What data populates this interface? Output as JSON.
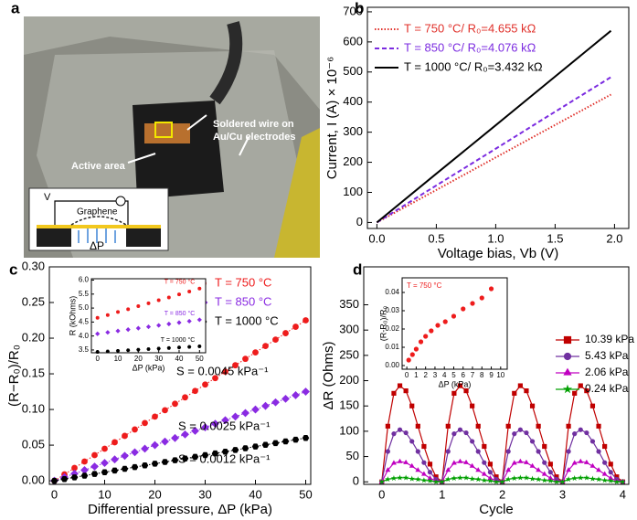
{
  "photo": {
    "panel_label": "a",
    "annotations": [
      "Soldered wire on",
      "Au/Cu electrodes",
      "Active area"
    ],
    "schematic": {
      "voltage": "V",
      "material": "Graphene",
      "pressure": "ΔP"
    }
  },
  "chart_data": [
    {
      "type": "line",
      "panel_label": "b",
      "xlabel": "Voltage bias, Vb (V)",
      "ylabel": "Current, I (A) × 10⁻⁶",
      "x": [
        0,
        0.5,
        1.0,
        1.5,
        1.97
      ],
      "series": [
        {
          "name": "T = 750 °C/ R₀=4.655 kΩ",
          "color": "#e0302a",
          "dash": "dotted",
          "values": [
            0,
            108,
            216,
            324,
            425
          ]
        },
        {
          "name": "T = 850 °C/ R₀=4.076 kΩ",
          "color": "#7b2be0",
          "dash": "dashed",
          "values": [
            0,
            123,
            245,
            368,
            483
          ]
        },
        {
          "name": "T = 1000 °C/ R₀=3.432 kΩ",
          "color": "#000000",
          "dash": "solid",
          "values": [
            0,
            162,
            323,
            485,
            637
          ]
        }
      ],
      "xlim": [
        -0.08,
        2.12
      ],
      "ylim": [
        -20,
        715
      ],
      "xticks": [
        {
          "value": 0,
          "label": "0.0"
        },
        {
          "value": 0.5,
          "label": "0.5"
        },
        {
          "value": 1,
          "label": "1.0"
        },
        {
          "value": 1.5,
          "label": "1.5"
        },
        {
          "value": 2,
          "label": "2.0"
        }
      ],
      "yticks": [
        0,
        100,
        200,
        300,
        400,
        500,
        600,
        700
      ],
      "legend": "top-left",
      "legend_text_colored": true
    },
    {
      "type": "scatter",
      "panel_label": "c",
      "xlabel": "Differential pressure, ΔP (kPa)",
      "ylabel": "(R−R₀)/R₀",
      "x": [
        0,
        2,
        4,
        6,
        8,
        10,
        12,
        14,
        16,
        18,
        20,
        22,
        24,
        26,
        28,
        30,
        32,
        34,
        36,
        38,
        40,
        42,
        44,
        46,
        48,
        50
      ],
      "series": [
        {
          "name": "T = 750 °C",
          "color": "#ee1c1c",
          "marker": "circle",
          "values": [
            0,
            0.009,
            0.018,
            0.027,
            0.036,
            0.045,
            0.054,
            0.063,
            0.072,
            0.081,
            0.09,
            0.099,
            0.108,
            0.117,
            0.126,
            0.135,
            0.144,
            0.153,
            0.162,
            0.171,
            0.18,
            0.189,
            0.198,
            0.207,
            0.216,
            0.225
          ]
        },
        {
          "name": "T = 850 °C",
          "color": "#8a2be2",
          "marker": "diamond",
          "values": [
            0,
            0.005,
            0.01,
            0.015,
            0.02,
            0.025,
            0.03,
            0.035,
            0.04,
            0.045,
            0.05,
            0.055,
            0.06,
            0.065,
            0.07,
            0.075,
            0.08,
            0.085,
            0.09,
            0.095,
            0.1,
            0.105,
            0.11,
            0.115,
            0.12,
            0.125
          ]
        },
        {
          "name": "T = 1000 °C",
          "color": "#000000",
          "marker": "hexagon",
          "values": [
            0,
            0.0024,
            0.0048,
            0.0072,
            0.0096,
            0.012,
            0.0144,
            0.0168,
            0.0192,
            0.0216,
            0.024,
            0.0264,
            0.0288,
            0.0312,
            0.0336,
            0.036,
            0.0384,
            0.0408,
            0.0432,
            0.0456,
            0.048,
            0.0504,
            0.0528,
            0.0552,
            0.0576,
            0.06
          ]
        }
      ],
      "annotations": [
        "S = 0.0045 kPa⁻¹",
        "S = 0.0025 kPa⁻¹",
        "S = 0.0012 kPa⁻¹"
      ],
      "fit_lines": true,
      "xlim": [
        -1,
        51
      ],
      "ylim": [
        -0.005,
        0.3
      ],
      "xticks": [
        0,
        10,
        20,
        30,
        40,
        50
      ],
      "yticks": [
        {
          "value": 0,
          "label": "0.00"
        },
        {
          "value": 0.05,
          "label": "0.05"
        },
        {
          "value": 0.1,
          "label": "0.10"
        },
        {
          "value": 0.15,
          "label": "0.15"
        },
        {
          "value": 0.2,
          "label": "0.20"
        },
        {
          "value": 0.25,
          "label": "0.25"
        },
        {
          "value": 0.3,
          "label": "0.30"
        }
      ],
      "legend": "top-right",
      "legend_text_colored": true
    },
    {
      "type": "scatter",
      "xlabel": "ΔP (kPa)",
      "ylabel": "R (kOhms)",
      "x": [
        0,
        5,
        10,
        15,
        20,
        25,
        30,
        35,
        40,
        45,
        50
      ],
      "series": [
        {
          "name": "T = 750 °C",
          "color": "#ee1c1c",
          "marker": "circle",
          "values": [
            4.65,
            4.75,
            4.86,
            4.96,
            5.07,
            5.17,
            5.28,
            5.38,
            5.49,
            5.59,
            5.7
          ]
        },
        {
          "name": "T = 850 °C",
          "color": "#8a2be2",
          "marker": "diamond",
          "values": [
            4.08,
            4.13,
            4.18,
            4.23,
            4.28,
            4.33,
            4.38,
            4.43,
            4.48,
            4.53,
            4.58
          ]
        },
        {
          "name": "T = 1000 °C",
          "color": "#000000",
          "marker": "hexagon",
          "values": [
            3.43,
            3.45,
            3.47,
            3.49,
            3.51,
            3.53,
            3.55,
            3.57,
            3.59,
            3.61,
            3.63
          ]
        }
      ],
      "xlim": [
        -3,
        53
      ],
      "ylim": [
        3.4,
        6.05
      ],
      "xticks": [
        0,
        10,
        20,
        30,
        40,
        50
      ],
      "yticks": [
        3.5,
        {
          "value": 4,
          "label": "4.0"
        },
        4.5,
        {
          "value": 5,
          "label": "5.0"
        },
        5.5,
        {
          "value": 6,
          "label": "6.0"
        }
      ],
      "legend": "inline",
      "legend_text_colored": true
    },
    {
      "type": "line",
      "panel_label": "d",
      "xlabel": "Cycle",
      "ylabel": "ΔR (Ohms)",
      "x": [
        0,
        0.1,
        0.2,
        0.3,
        0.4,
        0.5,
        0.6,
        0.7,
        0.8,
        0.9,
        1.0,
        1.1,
        1.2,
        1.3,
        1.4,
        1.5,
        1.6,
        1.7,
        1.8,
        1.9,
        2.0,
        2.1,
        2.2,
        2.3,
        2.4,
        2.5,
        2.6,
        2.7,
        2.8,
        2.9,
        3.0,
        3.1,
        3.2,
        3.3,
        3.4,
        3.5,
        3.6,
        3.7,
        3.8,
        3.9,
        4.0
      ],
      "series": [
        {
          "name": "10.39 kPa",
          "color": "#c00000",
          "marker": "square",
          "dash": "solid",
          "values": [
            0,
            110,
            175,
            190,
            180,
            150,
            110,
            70,
            35,
            10,
            0,
            110,
            175,
            190,
            180,
            150,
            110,
            70,
            35,
            10,
            0,
            110,
            175,
            190,
            180,
            150,
            110,
            70,
            35,
            10,
            0,
            110,
            175,
            190,
            180,
            150,
            110,
            70,
            35,
            10,
            0
          ]
        },
        {
          "name": "5.43 kPa",
          "color": "#7030a0",
          "marker": "circle",
          "dash": "solid",
          "values": [
            0,
            60,
            95,
            103,
            97,
            80,
            60,
            38,
            19,
            5,
            0,
            60,
            95,
            103,
            97,
            80,
            60,
            38,
            19,
            5,
            0,
            60,
            95,
            103,
            97,
            80,
            60,
            38,
            19,
            5,
            0,
            60,
            95,
            103,
            97,
            80,
            60,
            38,
            19,
            5,
            0
          ]
        },
        {
          "name": "2.06 kPa",
          "color": "#c000c0",
          "marker": "triangle",
          "dash": "solid",
          "values": [
            0,
            23,
            37,
            40,
            38,
            31,
            23,
            15,
            7,
            2,
            0,
            23,
            37,
            40,
            38,
            31,
            23,
            15,
            7,
            2,
            0,
            23,
            37,
            40,
            38,
            31,
            23,
            15,
            7,
            2,
            0,
            23,
            37,
            40,
            38,
            31,
            23,
            15,
            7,
            2,
            0
          ]
        },
        {
          "name": "0.24 kPa",
          "color": "#00a000",
          "marker": "star",
          "dash": "solid",
          "values": [
            0,
            5,
            7,
            8,
            8,
            6,
            5,
            3,
            2,
            0,
            0,
            5,
            7,
            8,
            8,
            6,
            5,
            3,
            2,
            0,
            0,
            5,
            7,
            8,
            8,
            6,
            5,
            3,
            2,
            0,
            0,
            5,
            7,
            8,
            8,
            6,
            5,
            3,
            2,
            0,
            0
          ]
        }
      ],
      "xlim": [
        -0.3,
        4.1
      ],
      "ylim": [
        -5,
        425
      ],
      "xticks": [
        0,
        1,
        2,
        3,
        4
      ],
      "yticks": [
        0,
        50,
        100,
        150,
        200,
        250,
        300,
        350
      ],
      "legend": "right",
      "legend_text_colored": false
    },
    {
      "type": "scatter",
      "xlabel": "ΔP (kPa)",
      "ylabel": "(R-R₀)/R₀",
      "x": [
        0.2,
        0.6,
        1.0,
        1.5,
        2.0,
        2.6,
        3.3,
        4.1,
        5.0,
        6.0,
        7.0,
        8.0,
        9.0
      ],
      "series": [
        {
          "name": "T = 750 °C",
          "color": "#ee1c1c",
          "marker": "circle",
          "values": [
            0.003,
            0.006,
            0.009,
            0.013,
            0.016,
            0.019,
            0.022,
            0.024,
            0.027,
            0.031,
            0.034,
            0.037,
            0.042
          ]
        }
      ],
      "xlim": [
        -0.5,
        10.7
      ],
      "ylim": [
        -0.002,
        0.048
      ],
      "xticks": [
        0,
        1,
        2,
        3,
        4,
        5,
        6,
        7,
        8,
        9,
        10
      ],
      "yticks": [
        {
          "value": 0,
          "label": "0.00"
        },
        {
          "value": 0.01,
          "label": "0.01"
        },
        {
          "value": 0.02,
          "label": "0.02"
        },
        {
          "value": 0.03,
          "label": "0.03"
        },
        {
          "value": 0.04,
          "label": "0.04"
        }
      ],
      "legend": "top-left",
      "legend_text_colored": true
    }
  ]
}
